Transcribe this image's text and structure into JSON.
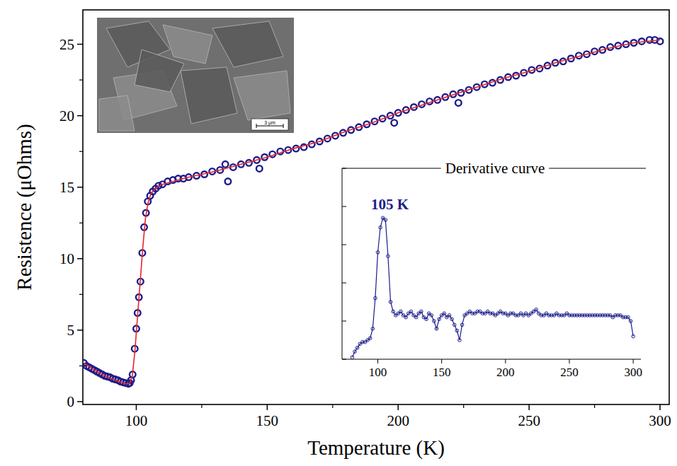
{
  "chart_data": [
    {
      "type": "scatter",
      "xlabel": "Temperature (K)",
      "ylabel": "Resistence (μOhms)",
      "xlim": [
        79.6,
        303.5
      ],
      "xticks": [
        100,
        150,
        200,
        250,
        300
      ],
      "ylim": [
        -0.2,
        27.4
      ],
      "yticks": [
        0,
        5,
        10,
        15,
        20,
        25
      ],
      "image": {
        "scale_bar": "3 μm"
      },
      "series": [
        {
          "type": "scatter",
          "marker": "circle",
          "color": "#1c1c8c",
          "x": [
            80,
            81,
            82,
            83,
            84,
            85,
            86,
            87,
            88,
            89,
            90,
            91,
            92,
            93,
            94,
            95,
            96,
            97,
            97.5,
            98,
            98.6,
            99.4,
            100,
            100.5,
            101,
            101.6,
            102.3,
            103,
            103.7,
            104.4,
            105.3,
            106.3,
            107.4,
            108.5,
            110,
            112,
            114,
            116,
            118,
            120,
            123,
            126,
            129,
            132,
            134,
            135,
            137,
            140,
            143,
            146,
            147,
            149,
            152,
            155,
            158,
            161,
            164,
            167,
            170,
            173,
            176,
            179,
            182,
            185,
            188,
            191,
            194,
            197,
            198.5,
            200,
            203,
            206,
            209,
            212,
            215,
            218,
            221,
            223,
            224,
            227,
            230,
            233,
            236,
            239,
            242,
            245,
            248,
            251,
            254,
            257,
            260,
            263,
            266,
            269,
            272,
            275,
            278,
            281,
            284,
            287,
            290,
            293,
            296,
            298,
            300
          ],
          "values": [
            2.7,
            2.5,
            2.4,
            2.3,
            2.2,
            2.1,
            2.0,
            1.9,
            1.8,
            1.75,
            1.7,
            1.6,
            1.55,
            1.5,
            1.4,
            1.35,
            1.3,
            1.25,
            1.3,
            1.5,
            1.9,
            3.7,
            5.1,
            6.2,
            7.3,
            8.4,
            10.4,
            12.2,
            13.2,
            14.0,
            14.4,
            14.7,
            14.9,
            15.1,
            15.2,
            15.4,
            15.5,
            15.6,
            15.6,
            15.7,
            15.8,
            15.9,
            16.1,
            16.2,
            16.6,
            15.4,
            16.4,
            16.6,
            16.7,
            16.9,
            16.3,
            17.1,
            17.3,
            17.5,
            17.6,
            17.7,
            17.8,
            18.0,
            18.2,
            18.4,
            18.6,
            18.8,
            19.0,
            19.2,
            19.4,
            19.6,
            19.8,
            20.0,
            19.5,
            20.2,
            20.4,
            20.6,
            20.8,
            21.0,
            21.1,
            21.3,
            21.5,
            20.9,
            21.6,
            21.8,
            22.0,
            22.2,
            22.3,
            22.5,
            22.7,
            22.8,
            23.0,
            23.2,
            23.3,
            23.5,
            23.7,
            23.8,
            24.0,
            24.2,
            24.3,
            24.5,
            24.6,
            24.8,
            24.9,
            25.0,
            25.1,
            25.2,
            25.3,
            25.3,
            25.2
          ]
        },
        {
          "type": "line",
          "line_style": "solid",
          "color": "#e8262a",
          "x": [
            80,
            84,
            88,
            92,
            96,
            97.5,
            98.5,
            99.5,
            100.5,
            101.5,
            102.5,
            103.5,
            104.5,
            105.5,
            107,
            110,
            120,
            130,
            140,
            150,
            160,
            170,
            180,
            190,
            200,
            210,
            220,
            230,
            240,
            250,
            260,
            270,
            280,
            290,
            300
          ],
          "values": [
            2.7,
            2.2,
            1.8,
            1.5,
            1.25,
            1.25,
            1.8,
            3.6,
            6.0,
            8.4,
            10.8,
            12.8,
            13.9,
            14.5,
            14.9,
            15.2,
            15.7,
            16.1,
            16.6,
            17.1,
            17.7,
            18.2,
            18.9,
            19.5,
            20.2,
            20.8,
            21.4,
            22.0,
            22.6,
            23.1,
            23.7,
            24.2,
            24.7,
            25.1,
            25.3
          ]
        }
      ]
    },
    {
      "type": "line",
      "title": "Derivative curve",
      "xlim": [
        72,
        306
      ],
      "xticks": [
        100,
        150,
        200,
        250,
        300
      ],
      "ylim": [
        0,
        10
      ],
      "yticks": [
        0,
        2,
        4,
        6,
        8,
        10
      ],
      "tick_labels": "x",
      "annotations": [
        {
          "text": "105 K",
          "x": 105,
          "y": 7.4
        }
      ],
      "series": [
        {
          "type": "line",
          "marker": "circle",
          "color": "#1c1c8c",
          "x": [
            80,
            82,
            84,
            86,
            88,
            90,
            92,
            94,
            96,
            98,
            100,
            102,
            104,
            106,
            108,
            110,
            112,
            114,
            116,
            118,
            120,
            122,
            124,
            126,
            128,
            130,
            132,
            134,
            136,
            138,
            140,
            142,
            144,
            146,
            148,
            150,
            152,
            154,
            156,
            158,
            160,
            162,
            164,
            166,
            168,
            170,
            172,
            174,
            176,
            178,
            180,
            182,
            184,
            186,
            188,
            190,
            192,
            194,
            196,
            198,
            200,
            202,
            204,
            206,
            208,
            210,
            212,
            214,
            216,
            218,
            220,
            222,
            224,
            226,
            228,
            230,
            232,
            234,
            236,
            238,
            240,
            242,
            244,
            246,
            248,
            250,
            252,
            254,
            256,
            258,
            260,
            262,
            264,
            266,
            268,
            270,
            272,
            274,
            276,
            278,
            280,
            282,
            284,
            286,
            288,
            290,
            292,
            294,
            296,
            298,
            300
          ],
          "values": [
            0.1,
            0.4,
            0.6,
            0.8,
            0.9,
            0.9,
            1.0,
            1.1,
            1.6,
            3.2,
            5.6,
            6.9,
            7.4,
            7.3,
            5.4,
            3.0,
            2.5,
            2.3,
            2.4,
            2.5,
            2.3,
            2.2,
            2.4,
            2.5,
            2.3,
            2.2,
            2.4,
            2.5,
            2.2,
            2.1,
            2.4,
            2.3,
            2.0,
            1.6,
            2.1,
            2.3,
            2.4,
            2.2,
            2.3,
            2.1,
            1.8,
            1.5,
            1.0,
            1.8,
            2.3,
            2.4,
            2.5,
            2.4,
            2.4,
            2.5,
            2.5,
            2.4,
            2.4,
            2.5,
            2.4,
            2.4,
            2.3,
            2.4,
            2.5,
            2.4,
            2.4,
            2.3,
            2.4,
            2.4,
            2.3,
            2.3,
            2.4,
            2.3,
            2.4,
            2.3,
            2.4,
            2.5,
            2.6,
            2.4,
            2.3,
            2.3,
            2.4,
            2.3,
            2.3,
            2.3,
            2.4,
            2.3,
            2.3,
            2.3,
            2.4,
            2.3,
            2.3,
            2.3,
            2.3,
            2.3,
            2.3,
            2.3,
            2.3,
            2.3,
            2.3,
            2.3,
            2.3,
            2.3,
            2.3,
            2.3,
            2.3,
            2.3,
            2.2,
            2.3,
            2.3,
            2.3,
            2.2,
            2.2,
            2.2,
            2.0,
            1.2
          ]
        }
      ]
    }
  ]
}
